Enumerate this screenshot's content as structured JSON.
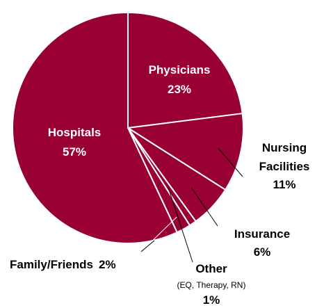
{
  "chart_data": {
    "type": "pie",
    "slice_color": "#990033",
    "separator_color": "#ffffff",
    "slices": [
      {
        "name": "Physicians",
        "value": 23,
        "value_label": "23%"
      },
      {
        "name": "Nursing Facilities",
        "value": 11,
        "value_label": "11%"
      },
      {
        "name": "Insurance",
        "value": 6,
        "value_label": "6%"
      },
      {
        "name": "Other",
        "note": "(EQ, Therapy, RN)",
        "value": 1,
        "value_label": "1%"
      },
      {
        "name": "Family/Friends",
        "value": 2,
        "value_label": "2%"
      },
      {
        "name": "Hospitals",
        "value": 57,
        "value_label": "57%"
      }
    ]
  }
}
